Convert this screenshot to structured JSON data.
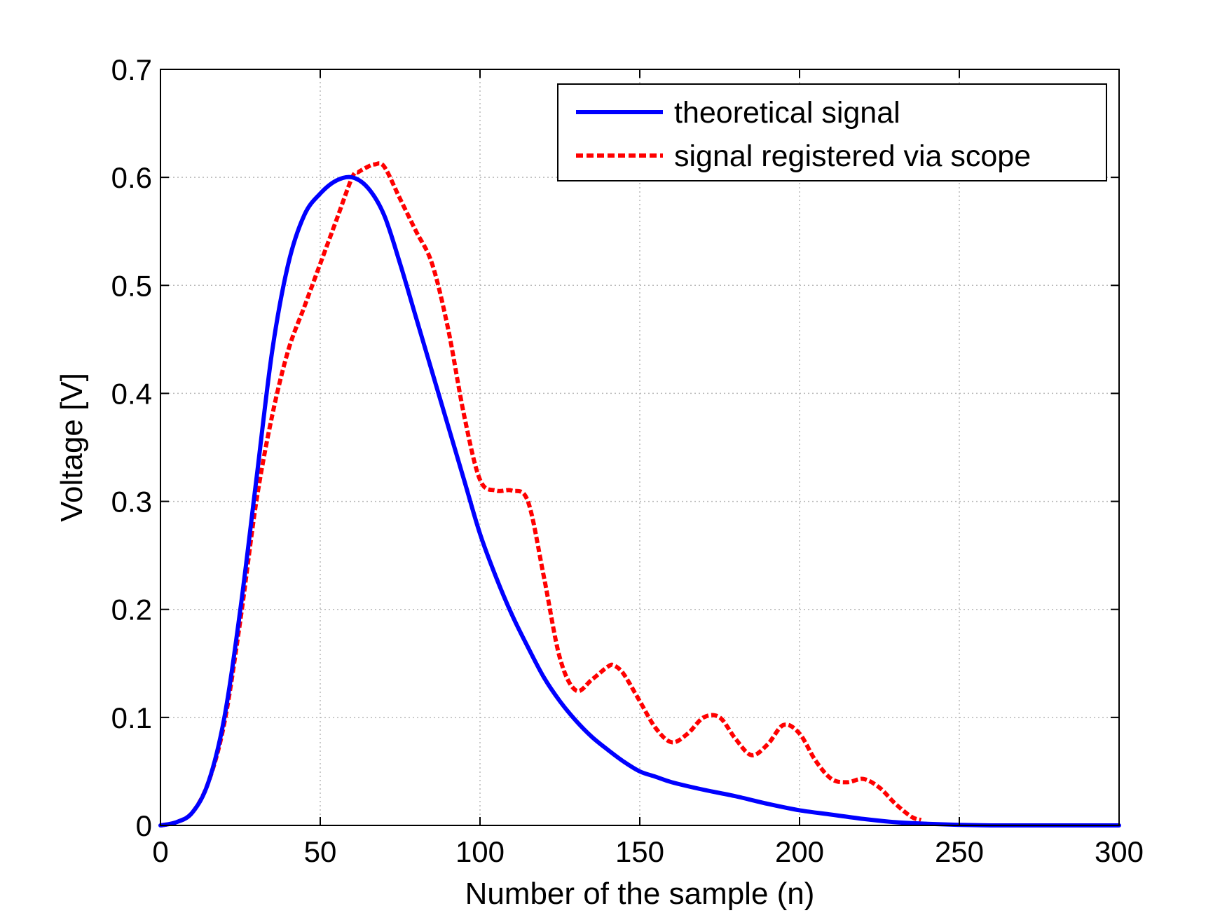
{
  "chart_data": {
    "type": "line",
    "title": "",
    "xlabel": "Number of the sample (n)",
    "ylabel": "Voltage [V]",
    "xlim": [
      0,
      300
    ],
    "ylim": [
      0,
      0.7
    ],
    "xticks": [
      0,
      50,
      100,
      150,
      200,
      250,
      300
    ],
    "yticks": [
      0,
      0.1,
      0.2,
      0.3,
      0.4,
      0.5,
      0.6,
      0.7
    ],
    "xtick_labels": [
      "0",
      "50",
      "100",
      "150",
      "200",
      "250",
      "300"
    ],
    "ytick_labels": [
      "0",
      "0.1",
      "0.2",
      "0.3",
      "0.4",
      "0.5",
      "0.6",
      "0.7"
    ],
    "grid": true,
    "legend_position": "top-right",
    "series": [
      {
        "name": "theoretical signal",
        "color": "#0000ff",
        "style": "solid",
        "x": [
          0,
          5,
          10,
          15,
          20,
          25,
          30,
          35,
          40,
          45,
          50,
          55,
          60,
          65,
          70,
          75,
          80,
          85,
          90,
          95,
          100,
          105,
          110,
          115,
          120,
          125,
          130,
          135,
          140,
          145,
          150,
          155,
          160,
          170,
          180,
          190,
          200,
          210,
          220,
          230,
          240,
          250,
          260,
          270,
          280,
          290,
          300
        ],
        "y": [
          0,
          0.003,
          0.012,
          0.04,
          0.1,
          0.2,
          0.32,
          0.44,
          0.52,
          0.565,
          0.585,
          0.597,
          0.6,
          0.59,
          0.565,
          0.52,
          0.47,
          0.42,
          0.37,
          0.32,
          0.27,
          0.23,
          0.195,
          0.165,
          0.137,
          0.115,
          0.097,
          0.082,
          0.07,
          0.059,
          0.05,
          0.045,
          0.04,
          0.033,
          0.027,
          0.02,
          0.014,
          0.01,
          0.006,
          0.003,
          0.0015,
          0.0005,
          0,
          0,
          0,
          0,
          0
        ]
      },
      {
        "name": "signal registered via scope",
        "color": "#ff0000",
        "style": "dashed",
        "x": [
          0,
          5,
          10,
          15,
          20,
          25,
          30,
          35,
          40,
          45,
          50,
          55,
          60,
          62,
          65,
          67,
          70,
          75,
          80,
          85,
          90,
          95,
          100,
          105,
          110,
          115,
          120,
          125,
          130,
          135,
          140,
          142,
          145,
          150,
          155,
          160,
          165,
          170,
          175,
          180,
          185,
          190,
          195,
          200,
          205,
          210,
          215,
          220,
          225,
          230,
          235,
          238
        ],
        "y": [
          0,
          0.003,
          0.012,
          0.04,
          0.095,
          0.19,
          0.3,
          0.38,
          0.44,
          0.48,
          0.52,
          0.56,
          0.6,
          0.605,
          0.61,
          0.612,
          0.61,
          0.58,
          0.55,
          0.52,
          0.46,
          0.38,
          0.32,
          0.31,
          0.31,
          0.3,
          0.23,
          0.155,
          0.125,
          0.135,
          0.147,
          0.148,
          0.14,
          0.115,
          0.09,
          0.077,
          0.085,
          0.1,
          0.1,
          0.08,
          0.065,
          0.075,
          0.093,
          0.085,
          0.06,
          0.043,
          0.04,
          0.043,
          0.035,
          0.02,
          0.008,
          0.005
        ]
      }
    ]
  }
}
